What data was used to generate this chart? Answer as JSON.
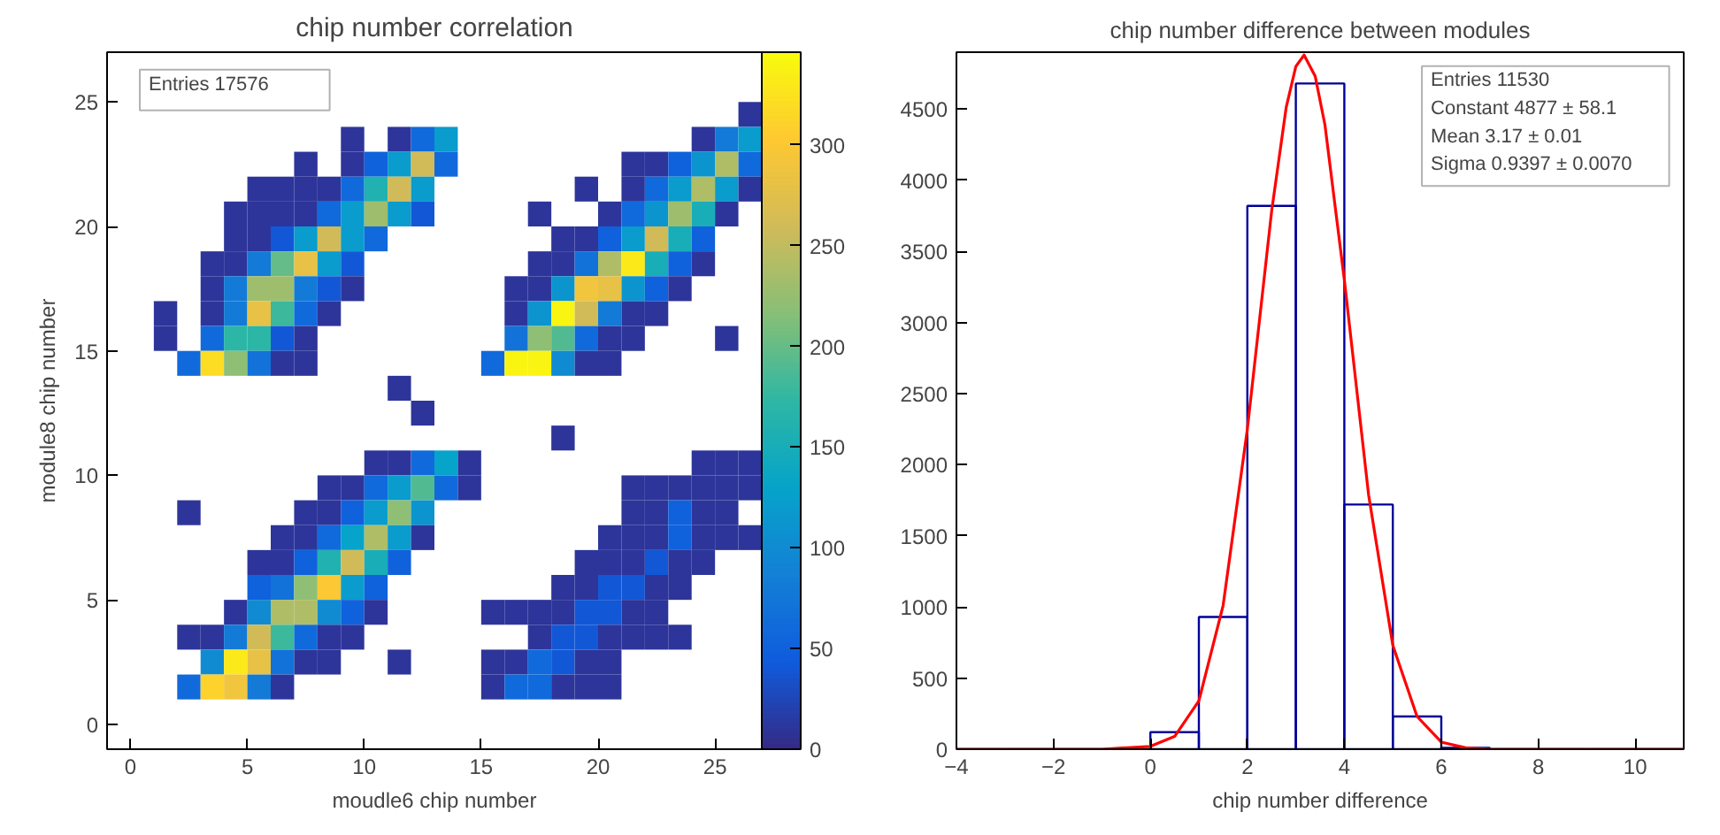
{
  "chart_data": [
    {
      "type": "heatmap",
      "title": "chip number correlation",
      "xlabel": "moudle6 chip number",
      "ylabel": "module8 chip number",
      "x": [
        1.5,
        2.5,
        3.5,
        4.5,
        5.5,
        6.5,
        7.5,
        8.5,
        9.5,
        10.5,
        11.5,
        12.5,
        13.5,
        14.5,
        15.5,
        16.5,
        17.5,
        18.5,
        19.5,
        20.5,
        21.5,
        22.5,
        23.5,
        24.5,
        25.5,
        26.5
      ],
      "y": [
        24.5,
        23.5,
        22.5,
        21.5,
        20.5,
        19.5,
        18.5,
        17.5,
        16.5,
        15.5,
        14.5,
        13.5,
        12.5,
        11.5,
        10.5,
        9.5,
        8.5,
        7.5,
        6.5,
        5.5,
        4.5,
        3.5,
        2.5,
        1.5
      ],
      "cells": [
        [
          null,
          null,
          null,
          null,
          null,
          null,
          null,
          null,
          null,
          null,
          null,
          null,
          null,
          null,
          null,
          null,
          null,
          null,
          null,
          null,
          null,
          null,
          null,
          null,
          null,
          10
        ],
        [
          null,
          null,
          null,
          null,
          null,
          null,
          null,
          null,
          10,
          null,
          10,
          60,
          120,
          null,
          null,
          null,
          null,
          null,
          null,
          null,
          null,
          null,
          null,
          10,
          80,
          120
        ],
        [
          null,
          null,
          null,
          null,
          null,
          null,
          10,
          null,
          10,
          50,
          120,
          260,
          60,
          null,
          null,
          null,
          null,
          null,
          null,
          null,
          10,
          10,
          50,
          110,
          240,
          60
        ],
        [
          null,
          null,
          null,
          null,
          10,
          10,
          10,
          10,
          60,
          160,
          260,
          120,
          null,
          null,
          null,
          null,
          null,
          null,
          10,
          null,
          10,
          60,
          120,
          240,
          120,
          10
        ],
        [
          null,
          null,
          null,
          10,
          10,
          10,
          10,
          60,
          120,
          230,
          120,
          40,
          null,
          null,
          null,
          null,
          10,
          null,
          null,
          10,
          60,
          110,
          230,
          150,
          10,
          null
        ],
        [
          null,
          null,
          null,
          10,
          10,
          40,
          120,
          260,
          120,
          60,
          null,
          null,
          null,
          null,
          null,
          null,
          null,
          10,
          10,
          50,
          120,
          260,
          150,
          50,
          null,
          null
        ],
        [
          null,
          null,
          10,
          10,
          80,
          200,
          280,
          120,
          40,
          null,
          null,
          null,
          null,
          null,
          null,
          null,
          10,
          10,
          70,
          240,
          330,
          150,
          50,
          10,
          null,
          null
        ],
        [
          null,
          null,
          10,
          80,
          230,
          230,
          80,
          40,
          10,
          null,
          null,
          null,
          null,
          null,
          null,
          10,
          10,
          110,
          290,
          280,
          110,
          50,
          10,
          null,
          null,
          null
        ],
        [
          10,
          null,
          10,
          80,
          280,
          180,
          60,
          10,
          null,
          null,
          null,
          null,
          null,
          null,
          null,
          10,
          110,
          340,
          260,
          80,
          10,
          10,
          null,
          null,
          null,
          null
        ],
        [
          10,
          null,
          60,
          170,
          170,
          40,
          10,
          null,
          null,
          null,
          null,
          null,
          null,
          null,
          null,
          70,
          220,
          190,
          60,
          10,
          10,
          null,
          null,
          null,
          10,
          null
        ],
        [
          null,
          60,
          320,
          220,
          70,
          10,
          10,
          null,
          null,
          null,
          null,
          null,
          null,
          null,
          60,
          340,
          340,
          100,
          10,
          10,
          null,
          null,
          null,
          null,
          null,
          null
        ],
        [
          null,
          null,
          null,
          null,
          null,
          null,
          null,
          null,
          null,
          null,
          10,
          null,
          null,
          null,
          null,
          null,
          null,
          null,
          null,
          null,
          null,
          null,
          null,
          null,
          null,
          null
        ],
        [
          null,
          null,
          null,
          null,
          null,
          null,
          null,
          null,
          null,
          null,
          null,
          10,
          null,
          null,
          null,
          null,
          null,
          null,
          null,
          null,
          null,
          null,
          null,
          null,
          null,
          null
        ],
        [
          null,
          null,
          null,
          null,
          null,
          null,
          null,
          null,
          null,
          null,
          null,
          null,
          null,
          null,
          null,
          null,
          null,
          10,
          null,
          null,
          null,
          null,
          null,
          null,
          null,
          null
        ],
        [
          null,
          null,
          null,
          null,
          null,
          null,
          null,
          null,
          null,
          10,
          10,
          60,
          130,
          10,
          null,
          null,
          null,
          null,
          null,
          null,
          null,
          null,
          null,
          10,
          10,
          10
        ],
        [
          null,
          null,
          null,
          null,
          null,
          null,
          null,
          10,
          10,
          60,
          120,
          190,
          60,
          10,
          null,
          null,
          null,
          null,
          null,
          null,
          10,
          10,
          10,
          10,
          10,
          10
        ],
        [
          null,
          10,
          null,
          null,
          null,
          null,
          10,
          10,
          50,
          120,
          220,
          110,
          null,
          null,
          null,
          null,
          null,
          null,
          null,
          null,
          10,
          10,
          50,
          10,
          10,
          null
        ],
        [
          null,
          null,
          null,
          null,
          null,
          10,
          10,
          60,
          130,
          240,
          120,
          10,
          null,
          null,
          null,
          null,
          null,
          null,
          null,
          10,
          10,
          10,
          50,
          10,
          10,
          10
        ],
        [
          null,
          null,
          null,
          null,
          10,
          10,
          50,
          160,
          260,
          150,
          50,
          null,
          null,
          null,
          null,
          null,
          null,
          null,
          10,
          10,
          10,
          40,
          10,
          10,
          null,
          null
        ],
        [
          null,
          null,
          null,
          null,
          50,
          70,
          220,
          300,
          120,
          50,
          null,
          null,
          null,
          null,
          null,
          null,
          null,
          10,
          10,
          40,
          40,
          10,
          10,
          null,
          null,
          null
        ],
        [
          null,
          null,
          null,
          10,
          100,
          240,
          240,
          100,
          50,
          10,
          null,
          null,
          null,
          null,
          10,
          10,
          10,
          10,
          40,
          40,
          10,
          10,
          null,
          null,
          null,
          null
        ],
        [
          null,
          10,
          10,
          80,
          260,
          180,
          60,
          10,
          10,
          null,
          null,
          null,
          null,
          null,
          null,
          null,
          10,
          40,
          40,
          10,
          10,
          10,
          10,
          null,
          null,
          null
        ],
        [
          null,
          null,
          100,
          330,
          280,
          70,
          10,
          10,
          null,
          null,
          10,
          null,
          null,
          null,
          10,
          10,
          60,
          40,
          10,
          10,
          null,
          null,
          null,
          null,
          null,
          null
        ],
        [
          null,
          60,
          310,
          290,
          80,
          10,
          null,
          null,
          null,
          null,
          null,
          null,
          null,
          null,
          10,
          60,
          60,
          10,
          10,
          10,
          null,
          null,
          null,
          null,
          null,
          null
        ]
      ],
      "xlim": [
        -1,
        27
      ],
      "ylim": [
        -1,
        27
      ],
      "xticks": [
        0,
        5,
        10,
        15,
        20,
        25
      ],
      "yticks": [
        0,
        5,
        10,
        15,
        20,
        25
      ],
      "clim": [
        0,
        346
      ],
      "cticks": [
        0,
        50,
        100,
        150,
        200,
        250,
        300
      ],
      "annotations": [
        "Entries    17576"
      ]
    },
    {
      "type": "histogram",
      "title": "chip number difference between modules",
      "xlabel": "chip number difference",
      "color": "#000099",
      "bins": [
        -4,
        -3,
        -2,
        -1,
        0,
        1,
        2,
        3,
        4,
        5,
        6,
        7,
        8,
        9,
        10,
        11
      ],
      "values": [
        0,
        0,
        0,
        0,
        120,
        930,
        3820,
        4680,
        1720,
        230,
        10,
        0,
        0,
        0,
        0
      ],
      "series": [
        {
          "type": "line",
          "color": "#ff0000",
          "x": [
            -4,
            -1,
            0,
            0.5,
            1,
            1.5,
            2,
            2.5,
            2.8,
            3,
            3.17,
            3.4,
            3.6,
            4,
            4.5,
            5,
            5.5,
            6,
            6.5,
            7,
            11
          ],
          "values": [
            0,
            0,
            20,
            90,
            340,
            1010,
            2250,
            3780,
            4510,
            4800,
            4880,
            4730,
            4390,
            3300,
            1790,
            730,
            230,
            50,
            10,
            0,
            0
          ]
        }
      ],
      "xlim": [
        -4,
        11
      ],
      "ylim": [
        0,
        4900
      ],
      "xticks": [
        {
          "value": -4,
          "label": "−4"
        },
        {
          "value": -2,
          "label": "−2"
        },
        0,
        2,
        4,
        6,
        8,
        10
      ],
      "yticks": [
        0,
        500,
        1000,
        1500,
        2000,
        2500,
        3000,
        3500,
        4000,
        4500
      ],
      "annotations": [
        "Entries    11530",
        "Constant    4877 ± 58.1",
        "Mean    3.17 ± 0.01",
        "Sigma    0.9397 ± 0.0070"
      ]
    }
  ]
}
